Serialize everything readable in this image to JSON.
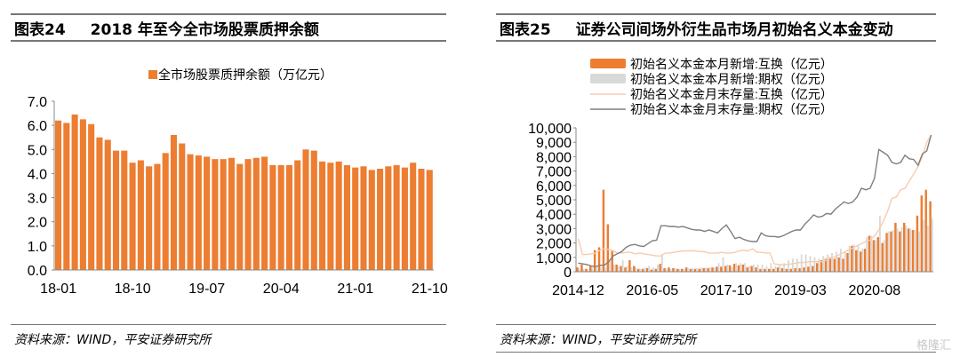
{
  "left": {
    "label": "图表24",
    "title": "2018 年至今全市场股票质押余额",
    "source": "资料来源：WIND，平安证券研究所"
  },
  "right": {
    "label": "图表25",
    "title": "证券公司间场外衍生品市场月初始名义本金变动",
    "source": "资料来源：WIND，平安证券研究所"
  },
  "watermark": "格隆汇",
  "chart_data": [
    {
      "type": "bar",
      "legend": [
        "全市场股票质押余额（万亿元）"
      ],
      "color": "#ED7D31",
      "ylim": [
        0,
        7
      ],
      "yticks": [
        "0.0",
        "1.0",
        "2.0",
        "3.0",
        "4.0",
        "5.0",
        "6.0",
        "7.0"
      ],
      "xticks": [
        "18-01",
        "18-10",
        "19-07",
        "20-04",
        "21-01",
        "21-10"
      ],
      "series": [
        {
          "name": "全市场股票质押余额（万亿元）",
          "values": [
            6.2,
            6.1,
            6.45,
            6.25,
            6.05,
            5.5,
            5.4,
            4.95,
            4.95,
            4.45,
            4.55,
            4.3,
            4.4,
            4.85,
            5.6,
            5.25,
            4.8,
            4.75,
            4.7,
            4.6,
            4.6,
            4.65,
            4.4,
            4.6,
            4.65,
            4.7,
            4.35,
            4.35,
            4.35,
            4.55,
            5.0,
            4.95,
            4.5,
            4.45,
            4.5,
            4.35,
            4.25,
            4.3,
            4.15,
            4.2,
            4.3,
            4.35,
            4.25,
            4.45,
            4.2,
            4.15
          ]
        }
      ]
    },
    {
      "type": "bar+line",
      "ylim": [
        0,
        10000
      ],
      "yticks": [
        "0",
        "1,000",
        "2,000",
        "3,000",
        "4,000",
        "5,000",
        "6,000",
        "7,000",
        "8,000",
        "9,000",
        "10,000"
      ],
      "xticks": [
        "2014-12",
        "2016-05",
        "2017-10",
        "2019-03",
        "2020-08"
      ],
      "series": [
        {
          "name": "初始名义本金本月新增:互换（亿元）",
          "kind": "bar",
          "color": "#ED7D31",
          "values": [
            300,
            500,
            200,
            400,
            1500,
            1700,
            5700,
            3300,
            1500,
            500,
            400,
            300,
            800,
            400,
            200,
            200,
            250,
            150,
            200,
            550,
            250,
            300,
            250,
            200,
            200,
            300,
            200,
            200,
            200,
            250,
            250,
            300,
            350,
            350,
            400,
            450,
            550,
            450,
            500,
            300,
            400,
            300,
            200,
            200,
            200,
            200,
            300,
            250,
            200,
            200,
            250,
            250,
            300,
            350,
            400,
            600,
            800,
            900,
            1000,
            900,
            1000,
            900,
            1300,
            1800,
            1500,
            1400,
            1600,
            2500,
            2200,
            2400,
            2000,
            2700,
            2800,
            3400,
            2800,
            3400,
            3000,
            2900,
            3900,
            5300,
            5700,
            4900
          ]
        },
        {
          "name": "初始名义本金本月新增:期权（亿元）",
          "kind": "bar",
          "color": "#D9D9D9",
          "values": [
            200,
            200,
            200,
            300,
            300,
            300,
            300,
            700,
            500,
            400,
            800,
            400,
            300,
            300,
            200,
            300,
            400,
            300,
            500,
            1200,
            200,
            200,
            250,
            200,
            200,
            250,
            250,
            250,
            300,
            300,
            300,
            300,
            600,
            1000,
            500,
            300,
            600,
            600,
            600,
            400,
            500,
            500,
            500,
            400,
            600,
            400,
            500,
            600,
            800,
            900,
            900,
            1200,
            1200,
            1100,
            1000,
            900,
            1100,
            1200,
            1300,
            1400,
            1600,
            1400,
            1800,
            1900,
            1800,
            1600,
            2400,
            2500,
            2200,
            3900,
            2200,
            2800,
            2900,
            3000,
            3100,
            3200,
            3000,
            2900,
            2800,
            3600,
            3200,
            3700
          ]
        },
        {
          "name": "初始名义本金月末存量:互换（亿元）",
          "kind": "line",
          "color": "#F8CBAD",
          "values": [
            2300,
            1200,
            1200,
            1250,
            1300,
            1500,
            1600,
            1550,
            1450,
            1300,
            1300,
            1350,
            1350,
            1250,
            1300,
            1250,
            1200,
            1150,
            1100,
            1100,
            1300,
            1300,
            1350,
            1400,
            1450,
            1450,
            1450,
            1450,
            1400,
            1400,
            1300,
            1300,
            1300,
            1350,
            1300,
            1300,
            1350,
            1450,
            1500,
            1450,
            1600,
            1350,
            1350,
            1300,
            1300,
            550,
            500,
            500,
            500,
            550,
            600,
            650,
            650,
            700,
            700,
            700,
            700,
            800,
            950,
            1050,
            1200,
            1350,
            1500,
            1650,
            1800,
            1950,
            2100,
            2200,
            2500,
            2900,
            3500,
            4200,
            5100,
            5200,
            5700,
            5800,
            6300,
            6800,
            7300,
            8000,
            9000,
            9500
          ]
        },
        {
          "name": "初始名义本金月末存量:期权（亿元）",
          "kind": "line",
          "color": "#7F7F7F",
          "values": [
            600,
            550,
            500,
            400,
            350,
            450,
            450,
            700,
            1100,
            1250,
            1400,
            1700,
            1850,
            1900,
            1800,
            1750,
            1950,
            2150,
            2200,
            3200,
            3200,
            3150,
            3150,
            3100,
            3150,
            3050,
            2950,
            2900,
            2900,
            2800,
            2900,
            2800,
            2700,
            3000,
            3250,
            2800,
            2300,
            2400,
            2250,
            2150,
            2100,
            2100,
            2700,
            2500,
            2450,
            2450,
            2400,
            2500,
            2650,
            2800,
            2900,
            2900,
            3300,
            3600,
            3950,
            3800,
            3850,
            4050,
            4000,
            4350,
            4600,
            4850,
            4750,
            4850,
            5200,
            5800,
            5700,
            5800,
            6500,
            8500,
            8300,
            8100,
            7600,
            7500,
            7600,
            8100,
            7850,
            7800,
            7400,
            8200,
            8400,
            9500
          ]
        }
      ]
    }
  ]
}
